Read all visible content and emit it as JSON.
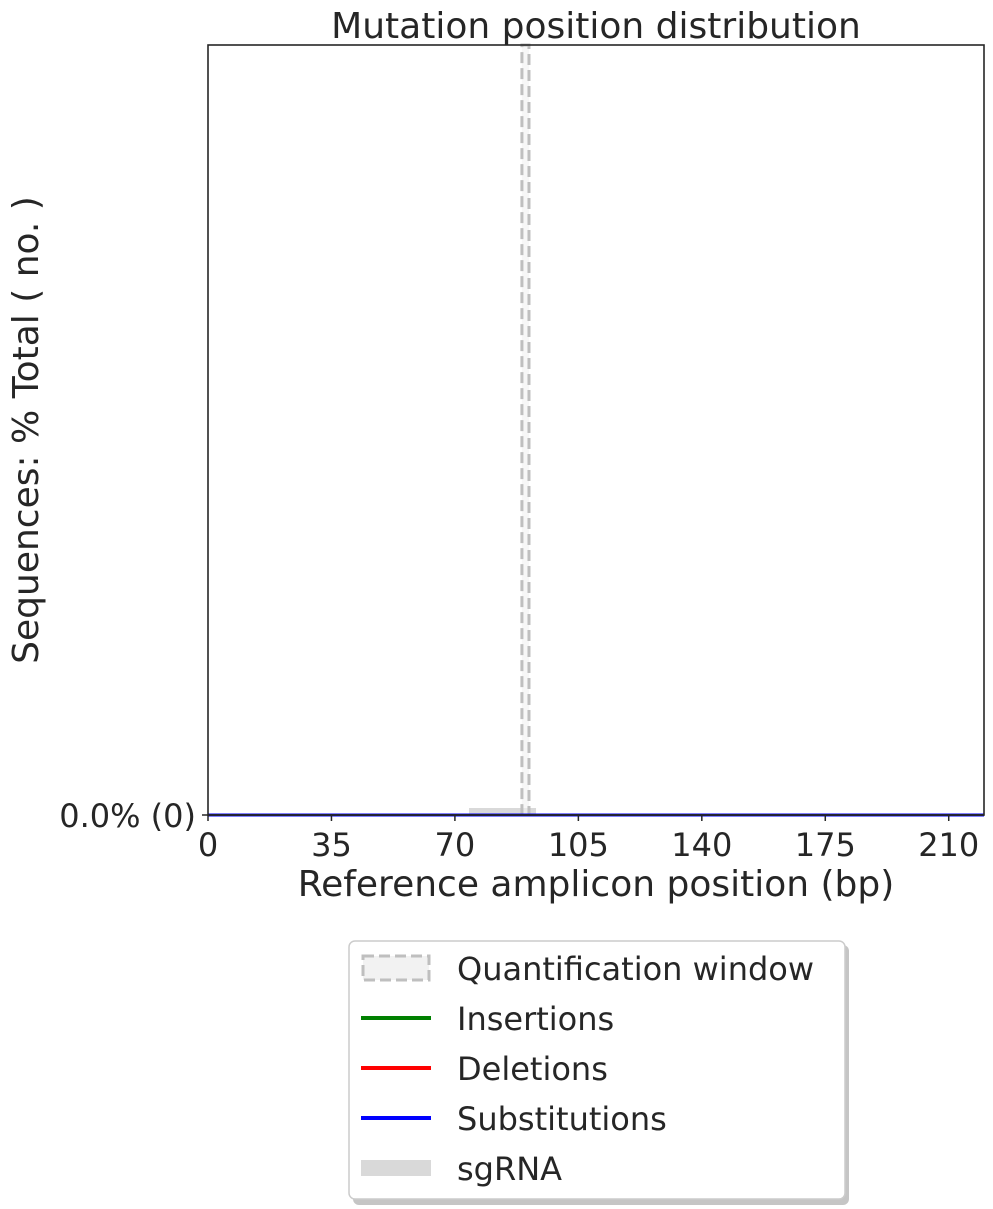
{
  "chart_data": {
    "type": "line",
    "title": "Mutation position distribution",
    "xlabel": "Reference amplicon position (bp)",
    "ylabel": "Sequences: % Total ( no. )",
    "xlim": [
      0,
      220
    ],
    "ylim": [
      0,
      1
    ],
    "x_ticks": [
      0,
      35,
      70,
      105,
      140,
      175,
      210
    ],
    "x_tick_labels": [
      "0",
      "35",
      "70",
      "105",
      "140",
      "175",
      "210"
    ],
    "y_ticks": [
      0
    ],
    "y_tick_labels": [
      "0.0% (0)"
    ],
    "quantification_window": [
      89,
      91
    ],
    "sgrna": [
      74,
      93
    ],
    "series": [
      {
        "name": "Insertions",
        "color": "#008000",
        "x": [
          0,
          220
        ],
        "y": [
          0,
          0
        ]
      },
      {
        "name": "Deletions",
        "color": "#ff0000",
        "x": [
          0,
          220
        ],
        "y": [
          0,
          0
        ]
      },
      {
        "name": "Substitutions",
        "color": "#0000ff",
        "x": [
          0,
          220
        ],
        "y": [
          0,
          0
        ]
      }
    ],
    "legend": {
      "placement": "below",
      "entries": [
        {
          "label": "Quantification window",
          "style": "dashed-box",
          "color": "#bfbfbf"
        },
        {
          "label": "Insertions",
          "style": "line",
          "color": "#008000"
        },
        {
          "label": "Deletions",
          "style": "line",
          "color": "#ff0000"
        },
        {
          "label": "Substitutions",
          "style": "line",
          "color": "#0000ff"
        },
        {
          "label": "sgRNA",
          "style": "bar",
          "color": "#d9d9d9"
        }
      ]
    },
    "grid": false
  }
}
